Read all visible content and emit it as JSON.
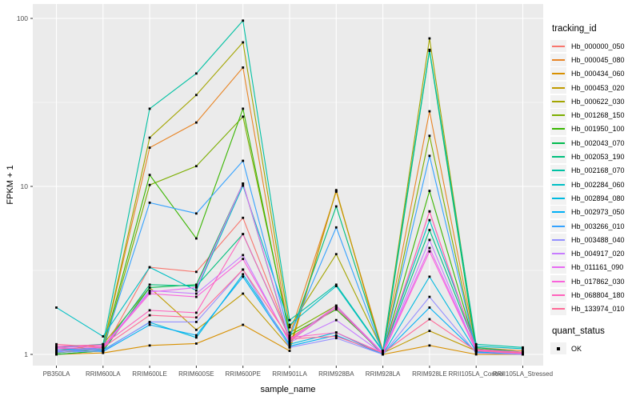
{
  "chart_data": {
    "type": "line",
    "title": "",
    "xlabel": "sample_name",
    "ylabel": "FPKM + 1",
    "y_scale": "log10",
    "ylim": [
      0.86,
      122
    ],
    "y_major_ticks": [
      1,
      10,
      100
    ],
    "y_minor_ticks": [
      3.162,
      31.62
    ],
    "grid": "on",
    "legend_position": "right",
    "legend_title": "tracking_id",
    "quant_legend_title": "quant_status",
    "quant_items": [
      {
        "label": "OK",
        "marker": "black-square"
      }
    ],
    "point_marker": "black-square",
    "categories": [
      "PB350LA",
      "RRIM600LA",
      "RRIM600LE",
      "RRIM600SE",
      "RRIM600PE",
      "RRIM901LA",
      "RRIM928BA",
      "RRIM928LA",
      "RRIM928LE",
      "RRII105LA_Control",
      "RRII105LA_Stressed"
    ],
    "series": [
      {
        "name": "Hb_000000_050",
        "color": "#F8766D",
        "values": [
          1.1,
          1.05,
          3.3,
          3.1,
          6.5,
          1.25,
          1.9,
          1.0,
          7.1,
          1.05,
          1.0
        ]
      },
      {
        "name": "Hb_000045_080",
        "color": "#E88526",
        "values": [
          1.05,
          1.1,
          17.0,
          24.0,
          51.0,
          1.3,
          9.3,
          1.05,
          28.0,
          1.1,
          1.05
        ]
      },
      {
        "name": "Hb_000434_060",
        "color": "#D89000",
        "values": [
          1.0,
          1.02,
          1.13,
          1.16,
          1.5,
          1.05,
          9.5,
          1.0,
          1.13,
          1.0,
          1.0
        ]
      },
      {
        "name": "Hb_000453_020",
        "color": "#C09B00",
        "values": [
          1.05,
          1.15,
          2.5,
          1.4,
          2.3,
          1.1,
          9.4,
          1.02,
          1.38,
          1.05,
          1.0
        ]
      },
      {
        "name": "Hb_000622_030",
        "color": "#A3A500",
        "values": [
          1.02,
          1.1,
          19.5,
          35.0,
          72.0,
          1.45,
          3.95,
          1.05,
          76.0,
          1.1,
          1.02
        ]
      },
      {
        "name": "Hb_001268_150",
        "color": "#7CAE00",
        "values": [
          1.0,
          1.05,
          10.2,
          13.2,
          26.0,
          1.35,
          1.95,
          1.0,
          20.0,
          1.05,
          1.0
        ]
      },
      {
        "name": "Hb_001950_100",
        "color": "#39B600",
        "values": [
          1.02,
          1.08,
          11.7,
          4.9,
          29.0,
          1.3,
          1.85,
          1.02,
          9.4,
          1.08,
          1.02
        ]
      },
      {
        "name": "Hb_002043_070",
        "color": "#00BB4E",
        "values": [
          1.0,
          1.05,
          2.5,
          2.6,
          10.4,
          1.2,
          1.9,
          1.0,
          64.0,
          1.05,
          1.0
        ]
      },
      {
        "name": "Hb_002053_190",
        "color": "#00BF7D",
        "values": [
          1.05,
          1.1,
          2.6,
          2.55,
          5.2,
          1.25,
          7.6,
          1.03,
          5.5,
          1.1,
          1.03
        ]
      },
      {
        "name": "Hb_002168_070",
        "color": "#00C1A3",
        "values": [
          1.1,
          1.15,
          29.0,
          47.0,
          97.0,
          1.6,
          2.6,
          1.05,
          65.0,
          1.15,
          1.1
        ]
      },
      {
        "name": "Hb_002284_060",
        "color": "#00BFC4",
        "values": [
          1.9,
          1.28,
          3.3,
          2.4,
          10.1,
          1.5,
          2.55,
          1.04,
          6.3,
          1.12,
          1.08
        ]
      },
      {
        "name": "Hb_002894_080",
        "color": "#00BAE0",
        "values": [
          1.08,
          1.06,
          1.55,
          1.26,
          3.0,
          1.15,
          1.35,
          1.0,
          2.9,
          1.04,
          1.02
        ]
      },
      {
        "name": "Hb_002973_050",
        "color": "#00B0F6",
        "values": [
          1.06,
          1.04,
          1.5,
          1.3,
          2.9,
          1.12,
          1.3,
          1.0,
          1.9,
          1.03,
          1.01
        ]
      },
      {
        "name": "Hb_003266_010",
        "color": "#35A2FF",
        "values": [
          1.04,
          1.1,
          8.0,
          6.9,
          14.2,
          1.28,
          5.7,
          1.02,
          15.2,
          1.06,
          1.02
        ]
      },
      {
        "name": "Hb_003488_040",
        "color": "#9590FF",
        "values": [
          1.03,
          1.05,
          1.56,
          1.56,
          3.2,
          1.1,
          1.25,
          1.0,
          2.2,
          1.02,
          1.0
        ]
      },
      {
        "name": "Hb_004917_020",
        "color": "#C77CFF",
        "values": [
          1.05,
          1.08,
          2.4,
          2.3,
          3.9,
          1.18,
          1.6,
          1.01,
          4.8,
          1.05,
          1.01
        ]
      },
      {
        "name": "Hb_011161_090",
        "color": "#E76BF3",
        "values": [
          1.1,
          1.12,
          2.35,
          2.5,
          10.4,
          1.22,
          1.95,
          1.02,
          4.3,
          1.06,
          1.02
        ]
      },
      {
        "name": "Hb_017862_030",
        "color": "#FA62DB",
        "values": [
          1.08,
          1.1,
          2.3,
          2.2,
          3.7,
          1.2,
          1.9,
          1.01,
          4.1,
          1.05,
          1.01
        ]
      },
      {
        "name": "Hb_068804_180",
        "color": "#FF62BC",
        "values": [
          1.12,
          1.14,
          1.83,
          1.77,
          5.2,
          1.26,
          1.35,
          1.02,
          7.1,
          1.07,
          1.03
        ]
      },
      {
        "name": "Hb_133974_010",
        "color": "#FF6A98",
        "values": [
          1.15,
          1.1,
          1.71,
          1.66,
          3.2,
          1.24,
          1.28,
          1.02,
          1.62,
          1.05,
          1.02
        ]
      }
    ],
    "colors": {
      "panel_bg": "#EBEBEB",
      "grid_major": "#FFFFFF",
      "grid_minor": "#F7F7F7",
      "axis_text": "#4D4D4D",
      "tick_mark": "#333333",
      "point": "#000000",
      "legend_key_bg": "#F2F2F2"
    }
  }
}
